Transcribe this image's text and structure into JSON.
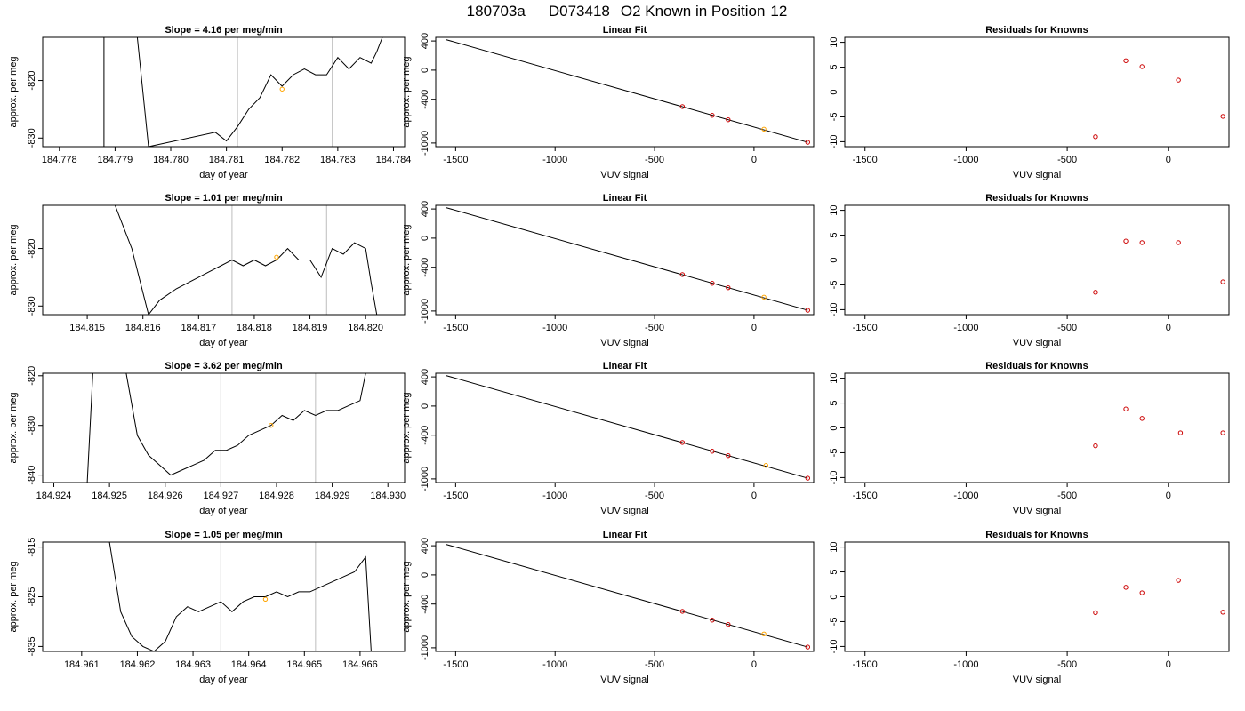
{
  "figure": {
    "title_parts": [
      "180703a",
      "D073418",
      "O2 Known in Position",
      "12"
    ]
  },
  "colors": {
    "trace": "#000000",
    "vline": "#c8c8c8",
    "marker": "#ffa500",
    "residual": "#cc0000",
    "fitline": "#000000"
  },
  "chart_data": [
    {
      "type": "line",
      "row": 0,
      "title": "Slope =  4.16  per meg/min",
      "xlabel": "day of year",
      "ylabel": "approx. per meg",
      "xlim": [
        184.7777,
        184.7842
      ],
      "ylim": [
        -831.5,
        -812.5
      ],
      "xticks": [
        "184.778",
        "184.779",
        "184.780",
        "184.781",
        "184.782",
        "184.783",
        "184.784"
      ],
      "yticks": [
        "-820",
        "-830"
      ],
      "vlines": [
        184.7812,
        184.7829
      ],
      "marker": {
        "x": 184.782,
        "y": -821.5
      },
      "x": [
        184.7788,
        184.7788,
        184.7794,
        184.7796,
        184.7808,
        184.781,
        184.7812,
        184.7814,
        184.7816,
        184.7818,
        184.782,
        184.7822,
        184.7824,
        184.7826,
        184.7828,
        184.783,
        184.7832,
        184.7834,
        184.7836,
        184.7837,
        184.7838
      ],
      "y": [
        -831.5,
        -812.5,
        -812.5,
        -831.5,
        -829,
        -830.5,
        -828,
        -825,
        -823,
        -819,
        -821,
        -819,
        -818,
        -819,
        -819,
        -816,
        -818,
        -816,
        -817,
        -815,
        -812.5
      ]
    },
    {
      "type": "scatter",
      "row": 0,
      "title": "Linear Fit",
      "xlabel": "VUV signal",
      "ylabel": "approx. per meg",
      "xlim": [
        -1600,
        300
      ],
      "ylim": [
        -1050,
        450
      ],
      "xticks": [
        -1500,
        -1000,
        -500,
        0
      ],
      "yticks": [
        400,
        0,
        -400,
        -1000
      ],
      "fit": [
        [
          -1550,
          420
        ],
        [
          270,
          -990
        ]
      ],
      "x": [
        -360,
        -210,
        -130,
        50,
        270
      ],
      "y": [
        -500,
        -620,
        -680,
        -810,
        -990
      ],
      "highlight_index": 3
    },
    {
      "type": "scatter",
      "row": 0,
      "title": "Residuals for Knowns",
      "xlabel": "VUV signal",
      "ylabel": "",
      "xlim": [
        -1600,
        300
      ],
      "ylim": [
        -11,
        11
      ],
      "xticks": [
        -1500,
        -1000,
        -500,
        0
      ],
      "yticks": [
        10,
        5,
        0,
        -5,
        -10
      ],
      "x": [
        -360,
        -210,
        -130,
        50,
        270
      ],
      "y": [
        -9,
        6.3,
        5.1,
        2.4,
        -4.9
      ]
    },
    {
      "type": "line",
      "row": 1,
      "title": "Slope =  1.01  per meg/min",
      "xlabel": "day of year",
      "ylabel": "approx. per meg",
      "xlim": [
        184.8142,
        184.8207
      ],
      "ylim": [
        -831.5,
        -812.5
      ],
      "xticks": [
        "184.815",
        "184.816",
        "184.817",
        "184.818",
        "184.819",
        "184.820"
      ],
      "yticks": [
        "-820",
        "-830"
      ],
      "vlines": [
        184.8176,
        184.8193
      ],
      "marker": {
        "x": 184.8184,
        "y": -821.5
      },
      "x": [
        184.8155,
        184.8158,
        184.8161,
        184.8163,
        184.8166,
        184.8168,
        184.817,
        184.8172,
        184.8174,
        184.8176,
        184.8178,
        184.818,
        184.8182,
        184.8184,
        184.8186,
        184.8188,
        184.819,
        184.8192,
        184.8194,
        184.8196,
        184.8198,
        184.82,
        184.8201,
        184.8202
      ],
      "y": [
        -812.5,
        -820,
        -831.5,
        -829,
        -827,
        -826,
        -825,
        -824,
        -823,
        -822,
        -823,
        -822,
        -823,
        -822,
        -820,
        -822,
        -822,
        -825,
        -820,
        -821,
        -819,
        -820,
        -826,
        -831.5
      ]
    },
    {
      "type": "scatter",
      "row": 1,
      "title": "Linear Fit",
      "xlabel": "VUV signal",
      "ylabel": "approx. per meg",
      "xlim": [
        -1600,
        300
      ],
      "ylim": [
        -1050,
        450
      ],
      "xticks": [
        -1500,
        -1000,
        -500,
        0
      ],
      "yticks": [
        400,
        0,
        -400,
        -1000
      ],
      "fit": [
        [
          -1550,
          420
        ],
        [
          270,
          -990
        ]
      ],
      "x": [
        -360,
        -210,
        -130,
        50,
        270
      ],
      "y": [
        -500,
        -620,
        -680,
        -810,
        -990
      ],
      "highlight_index": 3
    },
    {
      "type": "scatter",
      "row": 1,
      "title": "Residuals for Knowns",
      "xlabel": "VUV signal",
      "ylabel": "",
      "xlim": [
        -1600,
        300
      ],
      "ylim": [
        -11,
        11
      ],
      "xticks": [
        -1500,
        -1000,
        -500,
        0
      ],
      "yticks": [
        10,
        5,
        0,
        -5,
        -10
      ],
      "x": [
        -360,
        -210,
        -130,
        50,
        270
      ],
      "y": [
        -6.5,
        3.8,
        3.5,
        3.5,
        -4.4
      ]
    },
    {
      "type": "line",
      "row": 2,
      "title": "Slope =  3.62  per meg/min",
      "xlabel": "day of year",
      "ylabel": "approx. per meg",
      "xlim": [
        184.9238,
        184.9303
      ],
      "ylim": [
        -841.5,
        -819.5
      ],
      "xticks": [
        "184.924",
        "184.925",
        "184.926",
        "184.927",
        "184.928",
        "184.929",
        "184.930"
      ],
      "yticks": [
        "-820",
        "-830",
        "-840"
      ],
      "vlines": [
        184.927,
        184.9287
      ],
      "marker": {
        "x": 184.9279,
        "y": -830
      },
      "x": [
        184.9246,
        184.9247,
        184.9253,
        184.9255,
        184.9257,
        184.9259,
        184.9261,
        184.9263,
        184.9265,
        184.9267,
        184.9269,
        184.9271,
        184.9273,
        184.9275,
        184.9277,
        184.9279,
        184.9281,
        184.9283,
        184.9285,
        184.9287,
        184.9289,
        184.9291,
        184.9293,
        184.9295,
        184.9296
      ],
      "y": [
        -841.5,
        -819.5,
        -819.5,
        -832,
        -836,
        -838,
        -840,
        -839,
        -838,
        -837,
        -835,
        -835,
        -834,
        -832,
        -831,
        -830,
        -828,
        -829,
        -827,
        -828,
        -827,
        -827,
        -826,
        -825,
        -819.5
      ]
    },
    {
      "type": "scatter",
      "row": 2,
      "title": "Linear Fit",
      "xlabel": "VUV signal",
      "ylabel": "approx. per meg",
      "xlim": [
        -1600,
        300
      ],
      "ylim": [
        -1050,
        450
      ],
      "xticks": [
        -1500,
        -1000,
        -500,
        0
      ],
      "yticks": [
        400,
        0,
        -400,
        -1000
      ],
      "fit": [
        [
          -1550,
          420
        ],
        [
          270,
          -990
        ]
      ],
      "x": [
        -360,
        -210,
        -130,
        60,
        270
      ],
      "y": [
        -500,
        -620,
        -680,
        -815,
        -990
      ],
      "highlight_index": 3
    },
    {
      "type": "scatter",
      "row": 2,
      "title": "Residuals for Knowns",
      "xlabel": "VUV signal",
      "ylabel": "",
      "xlim": [
        -1600,
        300
      ],
      "ylim": [
        -11,
        11
      ],
      "xticks": [
        -1500,
        -1000,
        -500,
        0
      ],
      "yticks": [
        10,
        5,
        0,
        -5,
        -10
      ],
      "x": [
        -360,
        -210,
        -130,
        60,
        270
      ],
      "y": [
        -3.6,
        3.8,
        1.9,
        -1,
        -1
      ]
    },
    {
      "type": "line",
      "row": 3,
      "title": "Slope =  1.05  per meg/min",
      "xlabel": "day of year",
      "ylabel": "approx. per meg",
      "xlim": [
        184.9603,
        184.9668
      ],
      "ylim": [
        -836,
        -814
      ],
      "xticks": [
        "184.961",
        "184.962",
        "184.963",
        "184.964",
        "184.965",
        "184.966"
      ],
      "yticks": [
        "-815",
        "-825",
        "-835"
      ],
      "vlines": [
        184.9635,
        184.9652
      ],
      "marker": {
        "x": 184.9643,
        "y": -825.5
      },
      "x": [
        184.9615,
        184.9617,
        184.9619,
        184.9621,
        184.9623,
        184.9625,
        184.9627,
        184.9629,
        184.9631,
        184.9633,
        184.9635,
        184.9637,
        184.9639,
        184.9641,
        184.9643,
        184.9645,
        184.9647,
        184.9649,
        184.9651,
        184.9653,
        184.9655,
        184.9657,
        184.9659,
        184.9661,
        184.9662
      ],
      "y": [
        -814,
        -828,
        -833,
        -835,
        -836,
        -834,
        -829,
        -827,
        -828,
        -827,
        -826,
        -828,
        -826,
        -825,
        -825,
        -824,
        -825,
        -824,
        -824,
        -823,
        -822,
        -821,
        -820,
        -817,
        -836
      ]
    },
    {
      "type": "scatter",
      "row": 3,
      "title": "Linear Fit",
      "xlabel": "VUV signal",
      "ylabel": "approx. per meg",
      "xlim": [
        -1600,
        300
      ],
      "ylim": [
        -1050,
        450
      ],
      "xticks": [
        -1500,
        -1000,
        -500,
        0
      ],
      "yticks": [
        400,
        0,
        -400,
        -1000
      ],
      "fit": [
        [
          -1550,
          420
        ],
        [
          270,
          -990
        ]
      ],
      "x": [
        -360,
        -210,
        -130,
        50,
        270
      ],
      "y": [
        -500,
        -620,
        -680,
        -810,
        -990
      ],
      "highlight_index": 3
    },
    {
      "type": "scatter",
      "row": 3,
      "title": "Residuals for Knowns",
      "xlabel": "VUV signal",
      "ylabel": "",
      "xlim": [
        -1600,
        300
      ],
      "ylim": [
        -11,
        11
      ],
      "xticks": [
        -1500,
        -1000,
        -500,
        0
      ],
      "yticks": [
        10,
        5,
        0,
        -5,
        -10
      ],
      "x": [
        -360,
        -210,
        -130,
        50,
        270
      ],
      "y": [
        -3.2,
        1.9,
        0.8,
        3.3,
        -3.1
      ]
    }
  ]
}
